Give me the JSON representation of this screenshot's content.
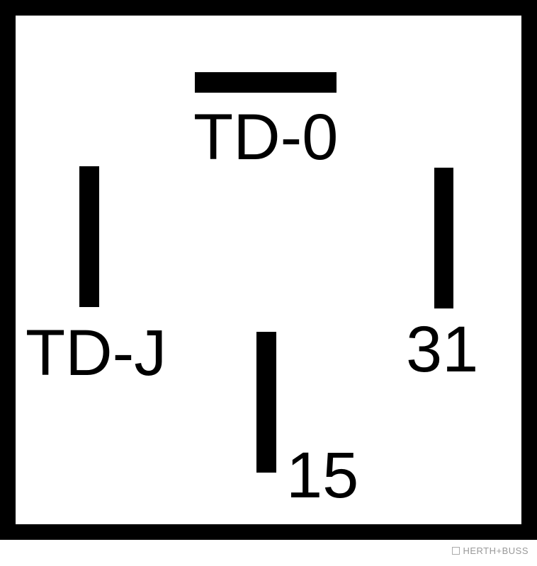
{
  "pins": {
    "top_label": "TD-0",
    "left_label": "TD-J",
    "right_label": "31",
    "bottom_label": "15"
  },
  "watermark": {
    "text": "HERTH+BUSS"
  }
}
